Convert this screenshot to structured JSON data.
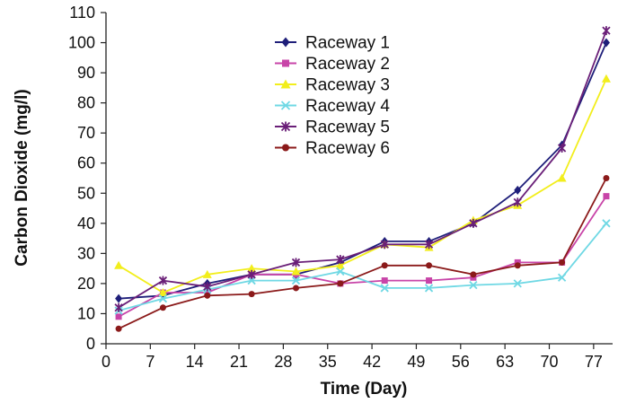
{
  "chart_data": {
    "type": "line",
    "xlabel": "Time (Day)",
    "ylabel": "Carbon Dioxide (mg/l)",
    "xlim": [
      0,
      80
    ],
    "ylim": [
      0,
      110
    ],
    "x_ticks": [
      0,
      7,
      14,
      21,
      28,
      35,
      42,
      49,
      56,
      63,
      70,
      77
    ],
    "y_ticks": [
      0,
      10,
      20,
      30,
      40,
      50,
      60,
      70,
      80,
      90,
      100,
      110
    ],
    "grid": false,
    "legend_position": "top-center",
    "x": [
      2,
      9,
      16,
      23,
      30,
      37,
      44,
      51,
      58,
      65,
      72,
      79
    ],
    "series": [
      {
        "name": "Raceway 1",
        "color": "#1f1f7a",
        "marker": "diamond",
        "values": [
          15,
          16,
          20,
          23,
          23,
          27,
          34,
          34,
          40,
          51,
          66,
          100
        ]
      },
      {
        "name": "Raceway 2",
        "color": "#c844a8",
        "marker": "square",
        "values": [
          9,
          17,
          17,
          23,
          23,
          20,
          21,
          21,
          22,
          27,
          27,
          49
        ]
      },
      {
        "name": "Raceway 3",
        "color": "#f2ee1c",
        "marker": "triangle",
        "values": [
          26,
          17,
          23,
          25,
          24,
          26,
          33,
          32,
          41,
          46,
          55,
          88
        ]
      },
      {
        "name": "Raceway 4",
        "color": "#6fd8e4",
        "marker": "x",
        "values": [
          11,
          15,
          18,
          21,
          21,
          24,
          18.5,
          18.5,
          19.5,
          20,
          22,
          40
        ]
      },
      {
        "name": "Raceway 5",
        "color": "#6a1f78",
        "marker": "star",
        "values": [
          12,
          21,
          19,
          23,
          27,
          28,
          33,
          33,
          40,
          47,
          65,
          104
        ]
      },
      {
        "name": "Raceway 6",
        "color": "#8b1a1a",
        "marker": "circle",
        "values": [
          5,
          12,
          16,
          16.5,
          18.5,
          20,
          26,
          26,
          23,
          26,
          27,
          55
        ]
      }
    ]
  }
}
